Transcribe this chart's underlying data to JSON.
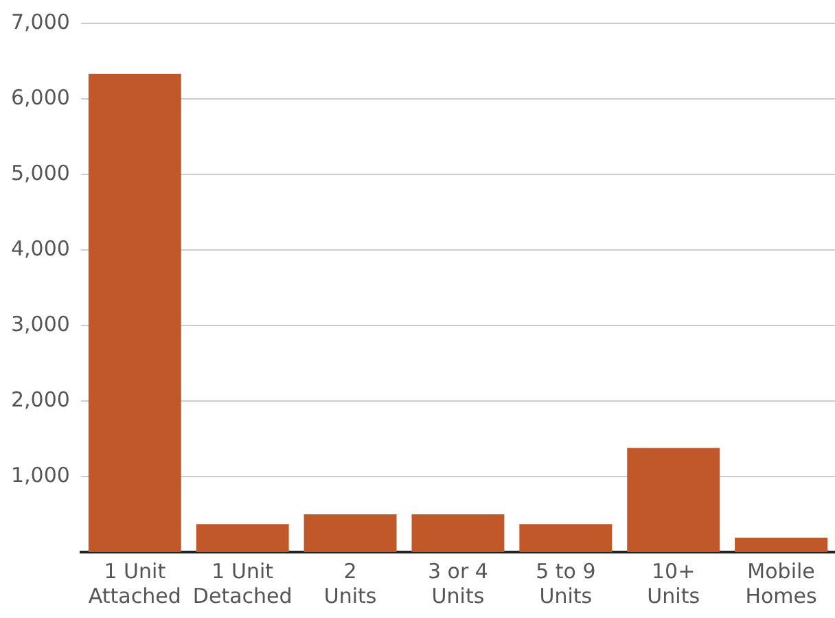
{
  "chart_data": {
    "type": "bar",
    "categories": [
      "1 Unit Attached",
      "1 Unit Detached",
      "2 Units",
      "3 or 4 Units",
      "5 to 9 Units",
      "10+ Units",
      "Mobile Homes"
    ],
    "values": [
      6330,
      370,
      500,
      500,
      370,
      1380,
      190
    ],
    "color": "#c0582a",
    "ylim": [
      0,
      7000
    ],
    "yticks": [
      {
        "value": 1000,
        "label": "1,000"
      },
      {
        "value": 2000,
        "label": "2,000"
      },
      {
        "value": 3000,
        "label": "3,000"
      },
      {
        "value": 4000,
        "label": "4,000"
      },
      {
        "value": 5000,
        "label": "5,000"
      },
      {
        "value": 6000,
        "label": "6,000"
      },
      {
        "value": 7000,
        "label": "7,000"
      }
    ],
    "grid": "y",
    "legend": false
  }
}
